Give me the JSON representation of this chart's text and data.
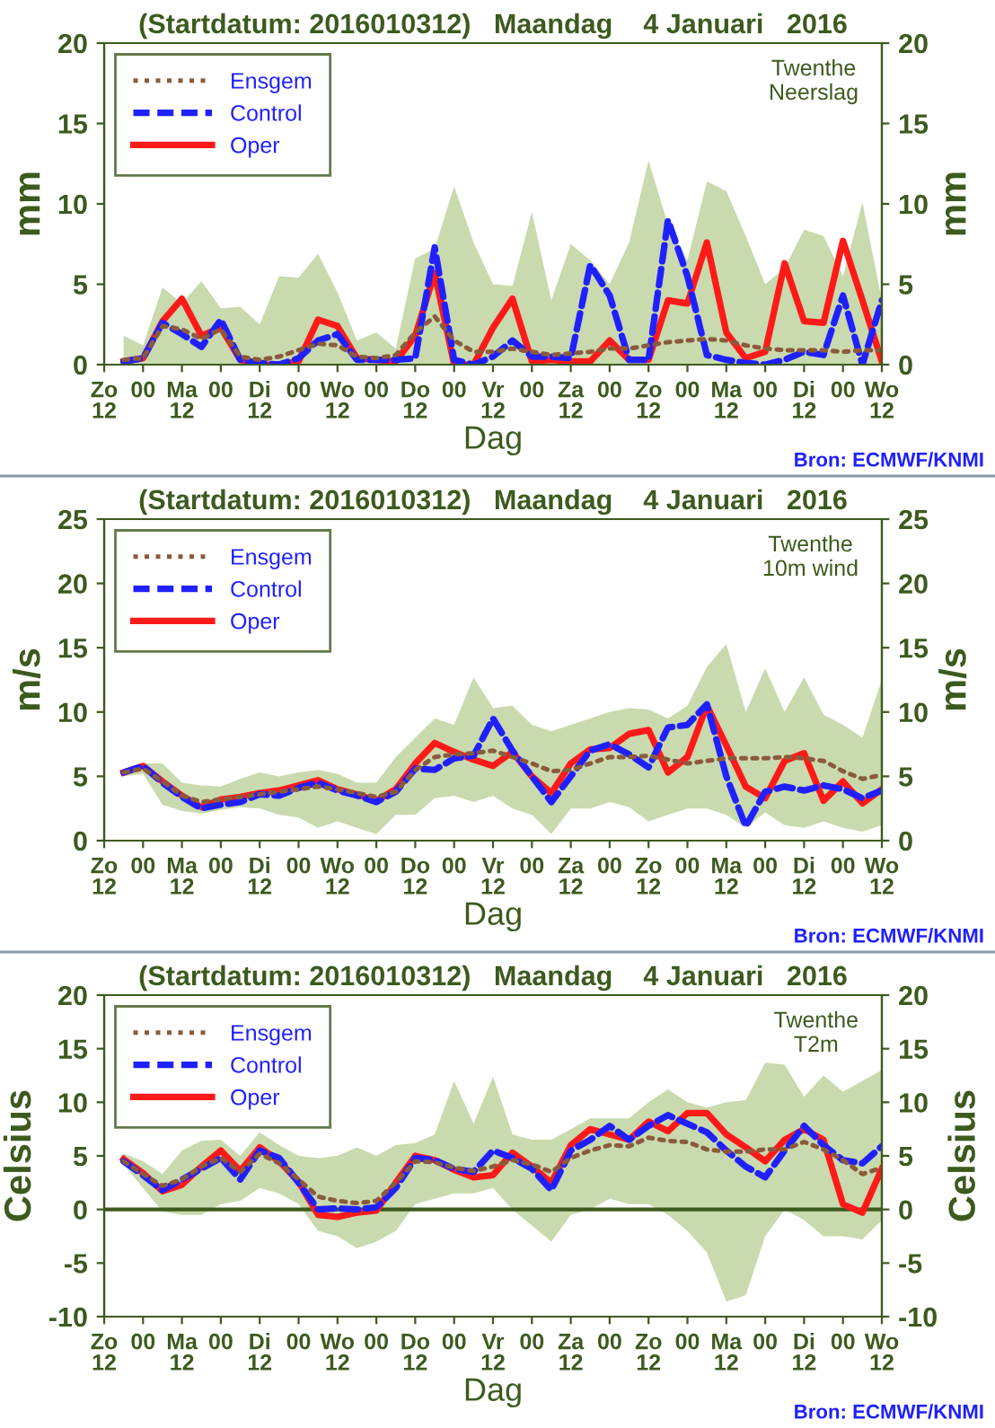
{
  "chart_data": [
    {
      "type": "line",
      "title": "(Startdatum: 2016010312)   Maandag    4 Januari   2016",
      "xlabel": "Dag",
      "ylabel": "mm",
      "y2label": "mm",
      "annotations": [
        "Twenthe\nNeerslag",
        "Bron: ECMWF/KNMI"
      ],
      "x": [
        "2016-01-03T18:00",
        "2016-01-04T00:00",
        "2016-01-04T06:00",
        "2016-01-04T12:00",
        "2016-01-04T18:00",
        "2016-01-05T00:00",
        "2016-01-05T06:00",
        "2016-01-05T12:00",
        "2016-01-05T18:00",
        "2016-01-06T00:00",
        "2016-01-06T06:00",
        "2016-01-06T12:00",
        "2016-01-06T18:00",
        "2016-01-07T00:00",
        "2016-01-07T06:00",
        "2016-01-07T12:00",
        "2016-01-07T18:00",
        "2016-01-08T00:00",
        "2016-01-08T06:00",
        "2016-01-08T12:00",
        "2016-01-08T18:00",
        "2016-01-09T00:00",
        "2016-01-09T06:00",
        "2016-01-09T12:00",
        "2016-01-09T18:00",
        "2016-01-10T00:00",
        "2016-01-10T06:00",
        "2016-01-10T12:00",
        "2016-01-10T18:00",
        "2016-01-11T00:00",
        "2016-01-11T06:00",
        "2016-01-11T12:00",
        "2016-01-11T18:00",
        "2016-01-12T00:00",
        "2016-01-12T06:00",
        "2016-01-12T12:00",
        "2016-01-12T18:00",
        "2016-01-13T00:00",
        "2016-01-13T06:00",
        "2016-01-13T12:00"
      ],
      "xlim": [
        "2016-01-03T12:00",
        "2016-01-13T12:00"
      ],
      "xticks": [
        {
          "value": "2016-01-03T12:00",
          "label": "Zo\n12"
        },
        {
          "value": "2016-01-04T00:00",
          "label": "00"
        },
        {
          "value": "2016-01-04T12:00",
          "label": "Ma\n12"
        },
        {
          "value": "2016-01-05T00:00",
          "label": "00"
        },
        {
          "value": "2016-01-05T12:00",
          "label": "Di\n12"
        },
        {
          "value": "2016-01-06T00:00",
          "label": "00"
        },
        {
          "value": "2016-01-06T12:00",
          "label": "Wo\n12"
        },
        {
          "value": "2016-01-07T00:00",
          "label": "00"
        },
        {
          "value": "2016-01-07T12:00",
          "label": "Do\n12"
        },
        {
          "value": "2016-01-08T00:00",
          "label": "00"
        },
        {
          "value": "2016-01-08T12:00",
          "label": "Vr\n12"
        },
        {
          "value": "2016-01-09T00:00",
          "label": "00"
        },
        {
          "value": "2016-01-09T12:00",
          "label": "Za\n12"
        },
        {
          "value": "2016-01-10T00:00",
          "label": "00"
        },
        {
          "value": "2016-01-10T12:00",
          "label": "Zo\n12"
        },
        {
          "value": "2016-01-11T00:00",
          "label": "00"
        },
        {
          "value": "2016-01-11T12:00",
          "label": "Ma\n12"
        },
        {
          "value": "2016-01-12T00:00",
          "label": "00"
        },
        {
          "value": "2016-01-12T12:00",
          "label": "Di\n12"
        },
        {
          "value": "2016-01-13T00:00",
          "label": "00"
        },
        {
          "value": "2016-01-13T12:00",
          "label": "Wo\n12"
        }
      ],
      "ylim": [
        0,
        20
      ],
      "yticks": [
        0,
        5,
        10,
        15,
        20
      ],
      "y2lim": [
        0,
        20
      ],
      "y2ticks": [
        0,
        5,
        10,
        15,
        20
      ],
      "legend": "top left",
      "grid": false,
      "series": [
        {
          "name": "Ensgem",
          "color": "#8b5a3c",
          "line_style": "dotted",
          "values": [
            0.3,
            0.4,
            2.4,
            2.2,
            1.6,
            2.2,
            0.5,
            0.3,
            0.5,
            0.9,
            1.3,
            1.2,
            0.5,
            0.4,
            0.6,
            2.0,
            3.0,
            1.5,
            0.8,
            0.8,
            1.0,
            0.8,
            0.6,
            0.7,
            0.8,
            1.0,
            1.0,
            1.2,
            1.4,
            1.5,
            1.6,
            1.5,
            1.2,
            1.0,
            0.9,
            0.9,
            0.9,
            0.8,
            0.9,
            0.9
          ],
          "lower": [
            0,
            0,
            0,
            0,
            0,
            0,
            0,
            0,
            0,
            0,
            0,
            0,
            0,
            0,
            0,
            0,
            0,
            0,
            0,
            0,
            0,
            0,
            0,
            0,
            0,
            0,
            0,
            0,
            0,
            0,
            0,
            0,
            0,
            0,
            0,
            0,
            0,
            0,
            0,
            0
          ],
          "upper": [
            1.8,
            1.2,
            4.8,
            3.8,
            5.2,
            3.5,
            3.6,
            2.5,
            5.5,
            5.4,
            6.9,
            4.5,
            1.5,
            2.0,
            1.0,
            6.6,
            7.2,
            11.1,
            7.6,
            5.0,
            4.9,
            9.5,
            4.0,
            7.5,
            6.5,
            5.0,
            7.6,
            12.7,
            8.7,
            6.5,
            11.4,
            10.8,
            8.0,
            5.0,
            6.0,
            8.4,
            8.0,
            5.5,
            10.1,
            4.0
          ]
        },
        {
          "name": "Control",
          "color": "#2020ff",
          "line_style": "dashed",
          "values": [
            0.2,
            0.4,
            2.6,
            1.9,
            1.1,
            2.8,
            0.3,
            0.1,
            0,
            0.4,
            1.5,
            1.9,
            0.3,
            0.3,
            0.3,
            0.4,
            7.3,
            0.3,
            0,
            0.5,
            1.5,
            0.5,
            0.5,
            0.4,
            6.2,
            4.3,
            0.3,
            0.3,
            9.0,
            5.5,
            0.6,
            0.3,
            0.1,
            0,
            0.3,
            0.8,
            0.6,
            4.3,
            0,
            4.0
          ]
        },
        {
          "name": "Oper",
          "color": "#ff1a1a",
          "line_style": "solid",
          "values": [
            0.2,
            0.4,
            2.7,
            4.1,
            1.8,
            2.3,
            0.3,
            0,
            0,
            0.2,
            2.8,
            2.4,
            0.4,
            0.3,
            0.2,
            1.8,
            5.7,
            0,
            0,
            2.3,
            4.1,
            0.2,
            0.3,
            0.2,
            0.2,
            1.5,
            0.3,
            0.3,
            4.0,
            3.8,
            7.6,
            2.0,
            0.4,
            0.8,
            6.3,
            2.7,
            2.6,
            7.7,
            4.0,
            0.2
          ]
        }
      ]
    },
    {
      "type": "line",
      "title": "(Startdatum: 2016010312)   Maandag    4 Januari   2016",
      "xlabel": "Dag",
      "ylabel": "m/s",
      "y2label": "m/s",
      "annotations": [
        "Twenthe\n10m wind",
        "Bron: ECMWF/KNMI"
      ],
      "x": [
        "2016-01-03T18:00",
        "2016-01-04T00:00",
        "2016-01-04T06:00",
        "2016-01-04T12:00",
        "2016-01-04T18:00",
        "2016-01-05T00:00",
        "2016-01-05T06:00",
        "2016-01-05T12:00",
        "2016-01-05T18:00",
        "2016-01-06T00:00",
        "2016-01-06T06:00",
        "2016-01-06T12:00",
        "2016-01-06T18:00",
        "2016-01-07T00:00",
        "2016-01-07T06:00",
        "2016-01-07T12:00",
        "2016-01-07T18:00",
        "2016-01-08T00:00",
        "2016-01-08T06:00",
        "2016-01-08T12:00",
        "2016-01-08T18:00",
        "2016-01-09T00:00",
        "2016-01-09T06:00",
        "2016-01-09T12:00",
        "2016-01-09T18:00",
        "2016-01-10T00:00",
        "2016-01-10T06:00",
        "2016-01-10T12:00",
        "2016-01-10T18:00",
        "2016-01-11T00:00",
        "2016-01-11T06:00",
        "2016-01-11T12:00",
        "2016-01-11T18:00",
        "2016-01-12T00:00",
        "2016-01-12T06:00",
        "2016-01-12T12:00",
        "2016-01-12T18:00",
        "2016-01-13T00:00",
        "2016-01-13T06:00",
        "2016-01-13T12:00"
      ],
      "xlim": [
        "2016-01-03T12:00",
        "2016-01-13T12:00"
      ],
      "xticks": [
        {
          "value": "2016-01-03T12:00",
          "label": "Zo\n12"
        },
        {
          "value": "2016-01-04T00:00",
          "label": "00"
        },
        {
          "value": "2016-01-04T12:00",
          "label": "Ma\n12"
        },
        {
          "value": "2016-01-05T00:00",
          "label": "00"
        },
        {
          "value": "2016-01-05T12:00",
          "label": "Di\n12"
        },
        {
          "value": "2016-01-06T00:00",
          "label": "00"
        },
        {
          "value": "2016-01-06T12:00",
          "label": "Wo\n12"
        },
        {
          "value": "2016-01-07T00:00",
          "label": "00"
        },
        {
          "value": "2016-01-07T12:00",
          "label": "Do\n12"
        },
        {
          "value": "2016-01-08T00:00",
          "label": "00"
        },
        {
          "value": "2016-01-08T12:00",
          "label": "Vr\n12"
        },
        {
          "value": "2016-01-09T00:00",
          "label": "00"
        },
        {
          "value": "2016-01-09T12:00",
          "label": "Za\n12"
        },
        {
          "value": "2016-01-10T00:00",
          "label": "00"
        },
        {
          "value": "2016-01-10T12:00",
          "label": "Zo\n12"
        },
        {
          "value": "2016-01-11T00:00",
          "label": "00"
        },
        {
          "value": "2016-01-11T12:00",
          "label": "Ma\n12"
        },
        {
          "value": "2016-01-12T00:00",
          "label": "00"
        },
        {
          "value": "2016-01-12T12:00",
          "label": "Di\n12"
        },
        {
          "value": "2016-01-13T00:00",
          "label": "00"
        },
        {
          "value": "2016-01-13T12:00",
          "label": "Wo\n12"
        }
      ],
      "ylim": [
        0,
        25
      ],
      "yticks": [
        0,
        5,
        10,
        15,
        20,
        25
      ],
      "y2lim": [
        0,
        25
      ],
      "y2ticks": [
        0,
        5,
        10,
        15,
        20,
        25
      ],
      "legend": "top left",
      "grid": false,
      "series": [
        {
          "name": "Ensgem",
          "color": "#8b5a3c",
          "line_style": "dotted",
          "values": [
            5.3,
            5.6,
            4.6,
            3.5,
            3.0,
            3.2,
            3.4,
            3.6,
            3.8,
            4.0,
            4.2,
            4.0,
            3.7,
            3.4,
            3.8,
            5.5,
            6.5,
            6.7,
            6.8,
            7.0,
            6.5,
            6.0,
            5.4,
            5.5,
            6.0,
            6.5,
            6.5,
            6.6,
            6.3,
            6.0,
            6.2,
            6.4,
            6.4,
            6.4,
            6.5,
            6.4,
            6.2,
            5.4,
            4.8,
            5.1
          ],
          "lower": [
            5.0,
            5.2,
            2.8,
            2.3,
            2.1,
            2.4,
            2.6,
            2.5,
            2.0,
            1.8,
            1.0,
            1.5,
            1.0,
            0.5,
            2.0,
            2.0,
            3.3,
            3.5,
            3.0,
            3.5,
            2.5,
            2.0,
            0.5,
            2.5,
            2.5,
            3.0,
            2.6,
            1.5,
            2.0,
            2.5,
            2.5,
            2.0,
            1.0,
            2.2,
            1.2,
            1.0,
            1.5,
            1.0,
            0.7,
            1.2
          ],
          "upper": [
            5.6,
            6.0,
            6.0,
            4.5,
            4.3,
            4.2,
            4.8,
            5.3,
            5.0,
            5.3,
            5.5,
            5.2,
            4.5,
            4.5,
            6.5,
            8.0,
            9.5,
            9.0,
            12.7,
            10.3,
            10.5,
            9.0,
            8.5,
            9.0,
            9.5,
            10.0,
            10.3,
            10.2,
            9.5,
            10.5,
            13.5,
            15.3,
            10.0,
            13.4,
            10.0,
            12.7,
            9.8,
            9.0,
            8.0,
            12.5
          ]
        },
        {
          "name": "Control",
          "color": "#2020ff",
          "line_style": "dashed",
          "values": [
            5.3,
            5.8,
            4.5,
            3.4,
            2.5,
            2.8,
            3.0,
            3.6,
            3.5,
            4.1,
            4.5,
            3.9,
            3.5,
            3.0,
            3.8,
            5.6,
            5.5,
            6.4,
            6.6,
            9.5,
            7.0,
            5.0,
            3.0,
            5.0,
            7.0,
            7.5,
            6.7,
            5.7,
            8.8,
            9.0,
            10.6,
            5.0,
            1.1,
            3.8,
            4.2,
            3.9,
            4.3,
            4.0,
            3.3,
            3.9
          ]
        },
        {
          "name": "Oper",
          "color": "#ff1a1a",
          "line_style": "solid",
          "values": [
            5.3,
            5.8,
            4.6,
            3.5,
            2.6,
            3.2,
            3.4,
            3.7,
            3.9,
            4.3,
            4.7,
            4.0,
            3.6,
            3.1,
            4.0,
            6.0,
            7.6,
            6.9,
            6.3,
            5.8,
            6.9,
            5.0,
            3.7,
            6.0,
            7.1,
            7.2,
            8.3,
            8.6,
            5.3,
            6.5,
            10.5,
            7.4,
            4.2,
            3.3,
            6.2,
            6.8,
            3.1,
            4.6,
            2.9,
            4.0
          ]
        }
      ]
    },
    {
      "type": "line",
      "title": "(Startdatum: 2016010312)   Maandag    4 Januari   2016",
      "xlabel": "Dag",
      "ylabel": "Celsius",
      "y2label": "Celsius",
      "annotations": [
        "Twenthe\nT2m",
        "Bron: ECMWF/KNMI"
      ],
      "x": [
        "2016-01-03T18:00",
        "2016-01-04T00:00",
        "2016-01-04T06:00",
        "2016-01-04T12:00",
        "2016-01-04T18:00",
        "2016-01-05T00:00",
        "2016-01-05T06:00",
        "2016-01-05T12:00",
        "2016-01-05T18:00",
        "2016-01-06T00:00",
        "2016-01-06T06:00",
        "2016-01-06T12:00",
        "2016-01-06T18:00",
        "2016-01-07T00:00",
        "2016-01-07T06:00",
        "2016-01-07T12:00",
        "2016-01-07T18:00",
        "2016-01-08T00:00",
        "2016-01-08T06:00",
        "2016-01-08T12:00",
        "2016-01-08T18:00",
        "2016-01-09T00:00",
        "2016-01-09T06:00",
        "2016-01-09T12:00",
        "2016-01-09T18:00",
        "2016-01-10T00:00",
        "2016-01-10T06:00",
        "2016-01-10T12:00",
        "2016-01-10T18:00",
        "2016-01-11T00:00",
        "2016-01-11T06:00",
        "2016-01-11T12:00",
        "2016-01-11T18:00",
        "2016-01-12T00:00",
        "2016-01-12T06:00",
        "2016-01-12T12:00",
        "2016-01-12T18:00",
        "2016-01-13T00:00",
        "2016-01-13T06:00",
        "2016-01-13T12:00"
      ],
      "xlim": [
        "2016-01-03T12:00",
        "2016-01-13T12:00"
      ],
      "xticks": [
        {
          "value": "2016-01-03T12:00",
          "label": "Zo\n12"
        },
        {
          "value": "2016-01-04T00:00",
          "label": "00"
        },
        {
          "value": "2016-01-04T12:00",
          "label": "Ma\n12"
        },
        {
          "value": "2016-01-05T00:00",
          "label": "00"
        },
        {
          "value": "2016-01-05T12:00",
          "label": "Di\n12"
        },
        {
          "value": "2016-01-06T00:00",
          "label": "00"
        },
        {
          "value": "2016-01-06T12:00",
          "label": "Wo\n12"
        },
        {
          "value": "2016-01-07T00:00",
          "label": "00"
        },
        {
          "value": "2016-01-07T12:00",
          "label": "Do\n12"
        },
        {
          "value": "2016-01-08T00:00",
          "label": "00"
        },
        {
          "value": "2016-01-08T12:00",
          "label": "Vr\n12"
        },
        {
          "value": "2016-01-09T00:00",
          "label": "00"
        },
        {
          "value": "2016-01-09T12:00",
          "label": "Za\n12"
        },
        {
          "value": "2016-01-10T00:00",
          "label": "00"
        },
        {
          "value": "2016-01-10T12:00",
          "label": "Zo\n12"
        },
        {
          "value": "2016-01-11T00:00",
          "label": "00"
        },
        {
          "value": "2016-01-11T12:00",
          "label": "Ma\n12"
        },
        {
          "value": "2016-01-12T00:00",
          "label": "00"
        },
        {
          "value": "2016-01-12T12:00",
          "label": "Di\n12"
        },
        {
          "value": "2016-01-13T00:00",
          "label": "00"
        },
        {
          "value": "2016-01-13T12:00",
          "label": "Wo\n12"
        }
      ],
      "ylim": [
        -10,
        20
      ],
      "yticks": [
        -10,
        -5,
        0,
        5,
        10,
        15,
        20
      ],
      "y2lim": [
        -10,
        20
      ],
      "y2ticks": [
        -10,
        -5,
        0,
        5,
        10,
        15,
        20
      ],
      "legend": "top left",
      "grid": false,
      "ref_lines": [
        {
          "axis": "y",
          "value": 0,
          "color": "#3d5a1e"
        }
      ],
      "series": [
        {
          "name": "Ensgem",
          "color": "#8b5a3c",
          "line_style": "dotted",
          "values": [
            4.5,
            3.3,
            2.2,
            2.8,
            4.0,
            4.8,
            3.5,
            5.2,
            4.3,
            2.8,
            1.2,
            0.8,
            0.6,
            0.8,
            2.5,
            4.5,
            4.4,
            3.9,
            3.6,
            4.0,
            4.6,
            4.2,
            3.5,
            4.8,
            5.5,
            6.0,
            5.9,
            6.7,
            6.4,
            6.3,
            5.6,
            5.4,
            5.4,
            5.6,
            5.6,
            6.3,
            5.6,
            4.6,
            3.3,
            3.9
          ],
          "lower": [
            4.2,
            2.0,
            -0.2,
            -0.5,
            -0.5,
            0.5,
            0.8,
            2.0,
            1.5,
            0.5,
            -2.0,
            -2.5,
            -3.6,
            -3.0,
            -2.0,
            0.5,
            1.0,
            1.5,
            1.5,
            2.0,
            0.0,
            -1.5,
            -3.0,
            -0.5,
            0.0,
            1.0,
            0.5,
            0.5,
            -0.5,
            -2.0,
            -4.0,
            -8.6,
            -8.0,
            -2.5,
            0.0,
            -1.0,
            -2.5,
            -2.5,
            -2.8,
            -1.0
          ],
          "upper": [
            5.2,
            4.5,
            3.3,
            5.5,
            6.4,
            6.5,
            5.0,
            7.2,
            6.0,
            5.0,
            4.8,
            5.0,
            5.8,
            5.0,
            6.0,
            6.2,
            7.0,
            12.0,
            8.0,
            12.4,
            7.0,
            6.5,
            6.5,
            7.5,
            8.5,
            8.5,
            8.5,
            10.0,
            11.2,
            10.0,
            9.5,
            10.0,
            10.2,
            13.7,
            13.5,
            10.5,
            12.5,
            11.0,
            12.0,
            13.0
          ]
        },
        {
          "name": "Control",
          "color": "#2020ff",
          "line_style": "dashed",
          "values": [
            4.5,
            3.2,
            1.8,
            2.8,
            3.8,
            4.8,
            2.8,
            5.5,
            4.8,
            2.5,
            0.0,
            0.1,
            0,
            0.2,
            2.0,
            4.8,
            4.6,
            3.8,
            3.5,
            5.5,
            4.8,
            3.8,
            1.8,
            5.5,
            6.5,
            7.8,
            6.5,
            7.8,
            8.8,
            8.0,
            7.2,
            5.5,
            4.0,
            3.0,
            5.5,
            7.8,
            6.0,
            4.6,
            4.3,
            5.9
          ]
        },
        {
          "name": "Oper",
          "color": "#ff1a1a",
          "line_style": "solid",
          "values": [
            4.7,
            3.4,
            1.7,
            2.3,
            4.0,
            5.5,
            3.6,
            5.8,
            4.5,
            2.6,
            -0.5,
            -0.7,
            -0.3,
            -0.1,
            2.5,
            5.0,
            4.6,
            3.7,
            3.0,
            3.2,
            5.3,
            4.0,
            2.5,
            6.0,
            7.5,
            7.0,
            6.5,
            8.2,
            7.3,
            9.0,
            9.0,
            7.0,
            5.8,
            4.5,
            6.5,
            7.5,
            6.5,
            0.5,
            -0.3,
            3.8
          ]
        }
      ]
    }
  ]
}
